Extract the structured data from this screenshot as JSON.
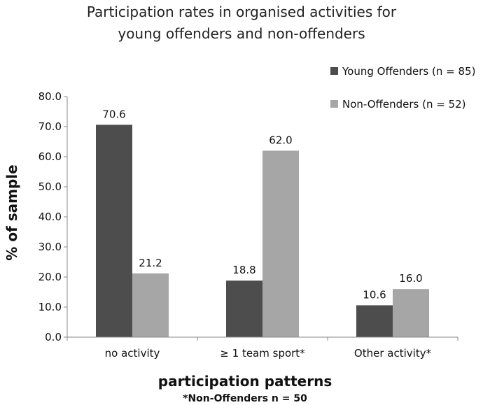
{
  "chart_data": {
    "type": "bar",
    "title": [
      "Participation rates in organised activities for",
      "young offenders and non-offenders"
    ],
    "categories": [
      "no activity",
      "≥ 1 team sport*",
      "Other activity*"
    ],
    "series": [
      {
        "name": "Young Offenders (n = 85)",
        "values": [
          70.6,
          18.8,
          10.6
        ],
        "color": "#4d4d4d"
      },
      {
        "name": "Non-Offenders (n = 52)",
        "values": [
          21.2,
          62.0,
          16.0
        ],
        "color": "#a6a6a6"
      }
    ],
    "ylabel": "% of sample",
    "xlabel": "participation patterns",
    "footnote": "*Non-Offenders n = 50",
    "ylim": [
      0,
      80
    ],
    "yticks": [
      "0.0",
      "10.0",
      "20.0",
      "30.0",
      "40.0",
      "50.0",
      "60.0",
      "70.0",
      "80.0"
    ],
    "data_labels": [
      [
        "70.6",
        "18.8",
        "10.6"
      ],
      [
        "21.2",
        "62.0",
        "16.0"
      ]
    ],
    "legend_position": "top-right",
    "grid": false
  }
}
